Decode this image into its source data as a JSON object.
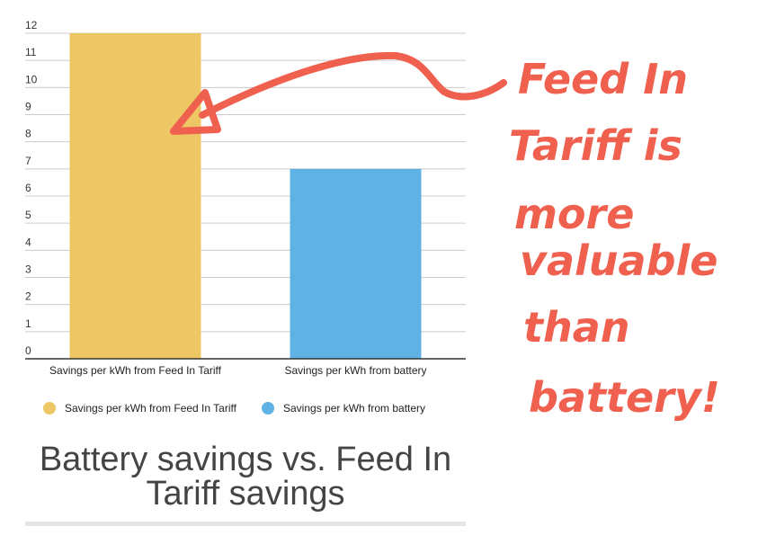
{
  "chart_data": {
    "type": "bar",
    "title": "Battery savings vs. Feed In Tariff savings",
    "categories": [
      "Savings per kWh from Feed In Tariff",
      "Savings per kWh from battery"
    ],
    "values": [
      12,
      7
    ],
    "colors": [
      "#ecc764",
      "#5fb3e4"
    ],
    "ylim": [
      0,
      12
    ],
    "yticks": [
      0,
      1,
      2,
      3,
      4,
      5,
      6,
      7,
      8,
      9,
      10,
      11,
      12
    ],
    "grid": true,
    "legend": {
      "position": "bottom",
      "entries": [
        "Savings per kWh from Feed In Tariff",
        "Savings per kWh from battery"
      ]
    },
    "annotation": {
      "lines": [
        "Feed In",
        "Tariff is",
        "more",
        "valuable",
        "than",
        "battery!"
      ],
      "color": "#f0604f"
    }
  }
}
